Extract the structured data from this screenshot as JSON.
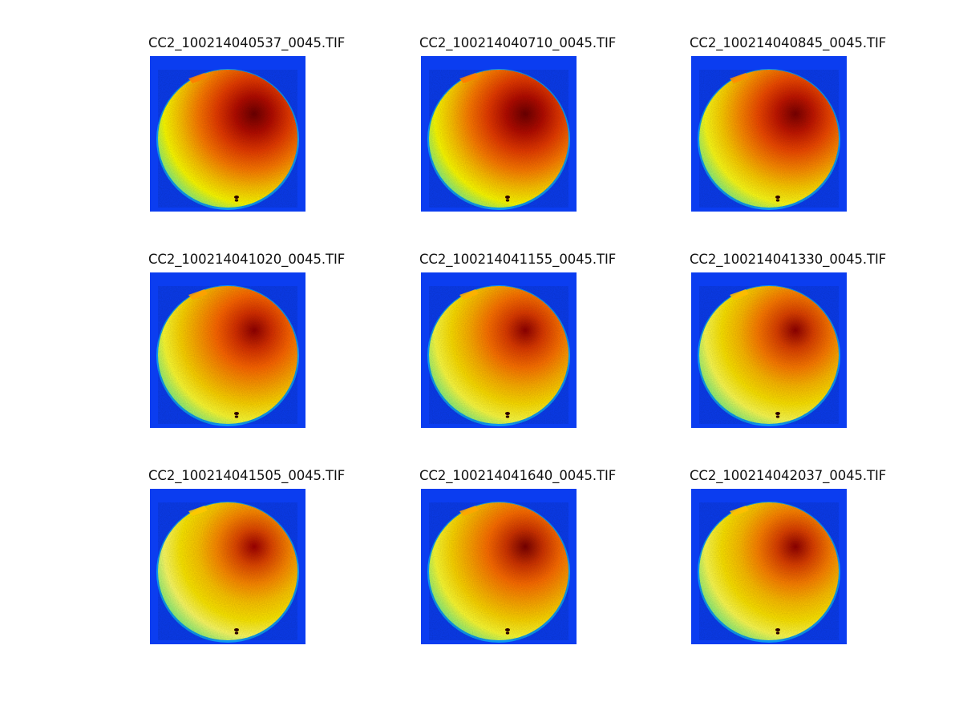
{
  "figure": {
    "panels": [
      {
        "title": "CC2_100214040537_0045.TIF",
        "palette": [
          "#6e0000",
          "#b50c00",
          "#e93c00",
          "#ff7b00",
          "#ffc300",
          "#ffff00",
          "#8ef27a",
          "#18e0d6"
        ]
      },
      {
        "title": "CC2_100214040710_0045.TIF",
        "palette": [
          "#6e0000",
          "#b50c00",
          "#e93c00",
          "#ff7b00",
          "#ffc300",
          "#ffff00",
          "#8ef27a",
          "#18e0d6"
        ]
      },
      {
        "title": "CC2_100214040845_0045.TIF",
        "palette": [
          "#7b0000",
          "#c41600",
          "#f24a00",
          "#ff8c00",
          "#ffcf00",
          "#ffff18",
          "#8ef27a",
          "#18e0d6"
        ]
      },
      {
        "title": "CC2_100214041020_0045.TIF",
        "palette": [
          "#920000",
          "#d93000",
          "#ff6600",
          "#ffa000",
          "#ffd600",
          "#ffff33",
          "#8ef27a",
          "#18e0d6"
        ]
      },
      {
        "title": "CC2_100214041155_0045.TIF",
        "palette": [
          "#920000",
          "#df3b00",
          "#ff7200",
          "#ffb000",
          "#ffe000",
          "#ffff42",
          "#8ef27a",
          "#18e0d6"
        ]
      },
      {
        "title": "CC2_100214041330_0045.TIF",
        "palette": [
          "#920000",
          "#df4100",
          "#ff7b00",
          "#ffbb00",
          "#ffe600",
          "#ffff52",
          "#8ef27a",
          "#18e0d6"
        ]
      },
      {
        "title": "CC2_100214041505_0045.TIF",
        "palette": [
          "#a10000",
          "#e34800",
          "#ff8a00",
          "#ffc700",
          "#ffea00",
          "#ffff66",
          "#8ef27a",
          "#18e0d6"
        ]
      },
      {
        "title": "CC2_100214041640_0045.TIF",
        "palette": [
          "#7b0000",
          "#d23400",
          "#ff6d00",
          "#ffa500",
          "#ffd800",
          "#ffff33",
          "#8ef27a",
          "#18e0d6"
        ]
      },
      {
        "title": "CC2_100214042037_0045.TIF",
        "palette": [
          "#920000",
          "#df4100",
          "#ff8200",
          "#ffbf00",
          "#ffe600",
          "#ffff52",
          "#8ef27a",
          "#18e0d6"
        ]
      }
    ],
    "background_color": "#0b3df0"
  }
}
